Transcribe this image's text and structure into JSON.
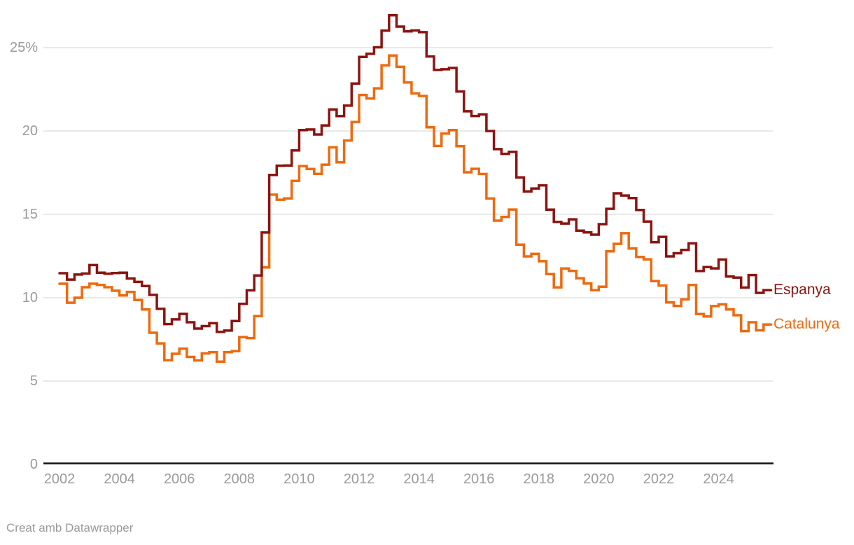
{
  "chart": {
    "background_color": "#ffffff",
    "gridline_color": "#e2e2e2",
    "baseline_color": "#141414",
    "axis_text_color": "#9b9b9b",
    "footer_text": "Creat amb Datawrapper"
  },
  "legend": {
    "espanya_label": "Espanya",
    "catalunya_label": "Catalunya"
  },
  "chart_data": {
    "type": "line",
    "step": true,
    "title": "",
    "xlabel": "",
    "ylabel": "",
    "x_start": "2002-Q1",
    "x_end": "2025-Q3",
    "points_per_year": 4,
    "ylim": [
      0,
      27.5
    ],
    "grid": true,
    "legend_position": "right-of-line-end",
    "y_ticks": [
      {
        "value": 0,
        "label": "0"
      },
      {
        "value": 5,
        "label": "5"
      },
      {
        "value": 10,
        "label": "10"
      },
      {
        "value": 15,
        "label": "15"
      },
      {
        "value": 20,
        "label": "20"
      },
      {
        "value": 25,
        "label": "25%"
      }
    ],
    "x_ticks": [
      {
        "year": 2002,
        "label": "2002"
      },
      {
        "year": 2004,
        "label": "2004"
      },
      {
        "year": 2006,
        "label": "2006"
      },
      {
        "year": 2008,
        "label": "2008"
      },
      {
        "year": 2010,
        "label": "2010"
      },
      {
        "year": 2012,
        "label": "2012"
      },
      {
        "year": 2014,
        "label": "2014"
      },
      {
        "year": 2016,
        "label": "2016"
      },
      {
        "year": 2018,
        "label": "2018"
      },
      {
        "year": 2020,
        "label": "2020"
      },
      {
        "year": 2022,
        "label": "2022"
      },
      {
        "year": 2024,
        "label": "2024"
      }
    ],
    "series": [
      {
        "name": "Espanya",
        "color": "#8c1410",
        "values": [
          11.47,
          11.09,
          11.39,
          11.45,
          11.96,
          11.5,
          11.44,
          11.48,
          11.5,
          11.15,
          10.95,
          10.7,
          10.17,
          9.33,
          8.42,
          8.7,
          9.03,
          8.53,
          8.15,
          8.3,
          8.47,
          7.95,
          8.03,
          8.6,
          9.63,
          10.44,
          11.33,
          13.91,
          17.36,
          17.92,
          17.93,
          18.83,
          20.05,
          20.09,
          19.79,
          20.33,
          21.29,
          20.89,
          21.52,
          22.85,
          24.44,
          24.63,
          25.02,
          26.02,
          26.94,
          26.26,
          25.98,
          26.03,
          25.93,
          24.47,
          23.67,
          23.7,
          23.78,
          22.37,
          21.18,
          20.9,
          21.0,
          20.0,
          18.91,
          18.63,
          18.75,
          17.22,
          16.38,
          16.55,
          16.74,
          15.28,
          14.55,
          14.45,
          14.7,
          14.02,
          13.92,
          13.78,
          14.41,
          15.33,
          16.26,
          16.13,
          15.98,
          15.26,
          14.57,
          13.33,
          13.65,
          12.48,
          12.67,
          12.87,
          13.26,
          11.6,
          11.84,
          11.76,
          12.29,
          11.27,
          11.21,
          10.61,
          11.36,
          10.29,
          10.45
        ]
      },
      {
        "name": "Catalunya",
        "color": "#ee6a0f",
        "values": [
          10.84,
          9.7,
          10.0,
          10.63,
          10.84,
          10.77,
          10.63,
          10.42,
          10.14,
          10.35,
          9.86,
          9.3,
          7.9,
          7.26,
          6.25,
          6.64,
          6.94,
          6.45,
          6.24,
          6.66,
          6.73,
          6.17,
          6.73,
          6.8,
          7.64,
          7.58,
          8.9,
          11.82,
          16.18,
          15.88,
          15.96,
          17.01,
          17.9,
          17.72,
          17.43,
          17.98,
          19.02,
          18.12,
          19.43,
          20.54,
          22.16,
          21.95,
          22.56,
          23.94,
          24.53,
          23.85,
          22.91,
          22.26,
          22.1,
          20.22,
          19.1,
          19.85,
          20.05,
          19.09,
          17.52,
          17.73,
          17.42,
          15.95,
          14.62,
          14.85,
          15.29,
          13.18,
          12.48,
          12.63,
          12.19,
          11.42,
          10.62,
          11.75,
          11.61,
          11.17,
          10.85,
          10.45,
          10.66,
          12.78,
          13.23,
          13.87,
          12.95,
          12.45,
          12.3,
          11.0,
          10.73,
          9.72,
          9.51,
          9.9,
          10.77,
          9.02,
          8.88,
          9.5,
          9.6,
          9.3,
          8.95,
          8.0,
          8.53,
          8.04,
          8.39
        ]
      }
    ]
  }
}
